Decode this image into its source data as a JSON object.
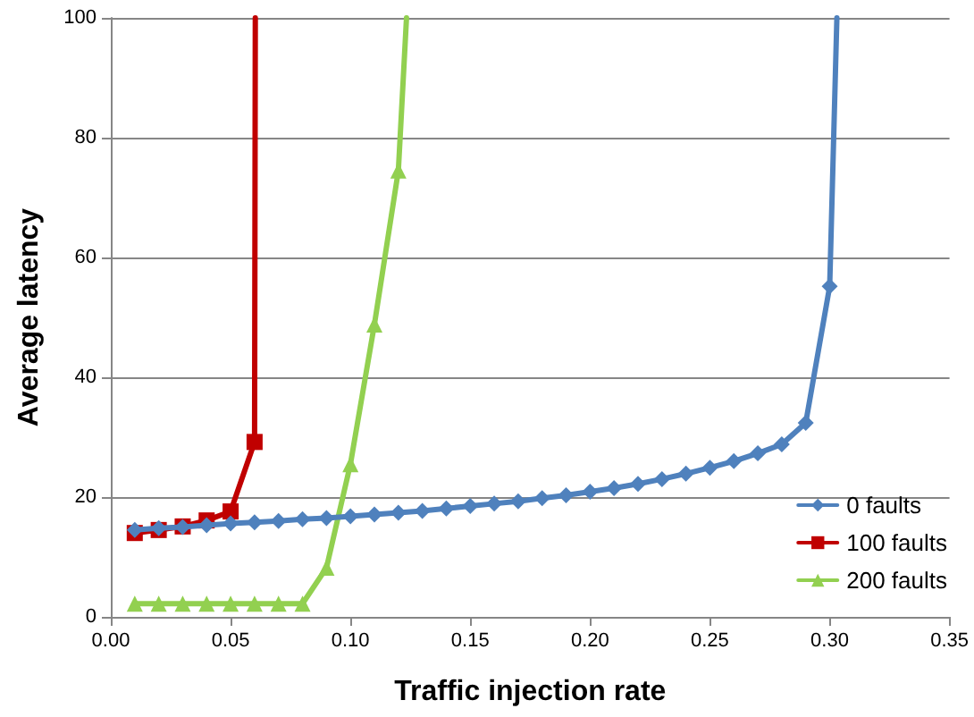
{
  "chart_data": {
    "type": "line",
    "xlabel": "Traffic injection rate",
    "ylabel": "Average latency",
    "xlim": [
      0,
      0.35
    ],
    "xticks": [
      {
        "value": 0,
        "label": "0.00"
      },
      {
        "value": 0.05,
        "label": "0.05"
      },
      {
        "value": 0.1,
        "label": "0.10"
      },
      {
        "value": 0.15,
        "label": "0.15"
      },
      {
        "value": 0.2,
        "label": "0.20"
      },
      {
        "value": 0.25,
        "label": "0.25"
      },
      {
        "value": 0.3,
        "label": "0.30"
      },
      {
        "value": 0.35,
        "label": "0.35"
      }
    ],
    "ylim": [
      0,
      100
    ],
    "yticks": [
      0,
      20,
      40,
      60,
      80,
      100
    ],
    "grid": "y",
    "legend": "bottom right",
    "line_style": "solid",
    "series": [
      {
        "name": "0 faults",
        "color": "#4f81bd",
        "marker": "diamond",
        "x": [
          0.01,
          0.02,
          0.03,
          0.04,
          0.05,
          0.06,
          0.07,
          0.08,
          0.09,
          0.1,
          0.11,
          0.12,
          0.13,
          0.14,
          0.15,
          0.16,
          0.17,
          0.18,
          0.19,
          0.2,
          0.21,
          0.22,
          0.23,
          0.24,
          0.25,
          0.26,
          0.27,
          0.28,
          0.29,
          0.3,
          0.303
        ],
        "values": [
          14.5,
          14.8,
          15.0,
          15.3,
          15.6,
          15.8,
          16.0,
          16.3,
          16.5,
          16.8,
          17.1,
          17.4,
          17.7,
          18.1,
          18.5,
          18.9,
          19.3,
          19.8,
          20.3,
          20.9,
          21.5,
          22.2,
          23.0,
          23.9,
          24.9,
          26.0,
          27.3,
          28.8,
          32.4,
          55.2,
          100
        ]
      },
      {
        "name": "100 faults",
        "color": "#c00000",
        "marker": "square",
        "x": [
          0.01,
          0.02,
          0.03,
          0.04,
          0.05,
          0.06,
          0.0603
        ],
        "values": [
          14.0,
          14.5,
          15.1,
          16.1,
          17.6,
          29.2,
          100
        ]
      },
      {
        "name": "200 faults",
        "color": "#92d050",
        "marker": "triangle",
        "x": [
          0.01,
          0.02,
          0.03,
          0.04,
          0.05,
          0.06,
          0.07,
          0.08,
          0.09,
          0.1,
          0.11,
          0.12,
          0.1234
        ],
        "values": [
          2.2,
          2.2,
          2.2,
          2.2,
          2.2,
          2.2,
          2.2,
          2.2,
          8.2,
          25.5,
          48.8,
          74.5,
          100
        ]
      }
    ]
  }
}
